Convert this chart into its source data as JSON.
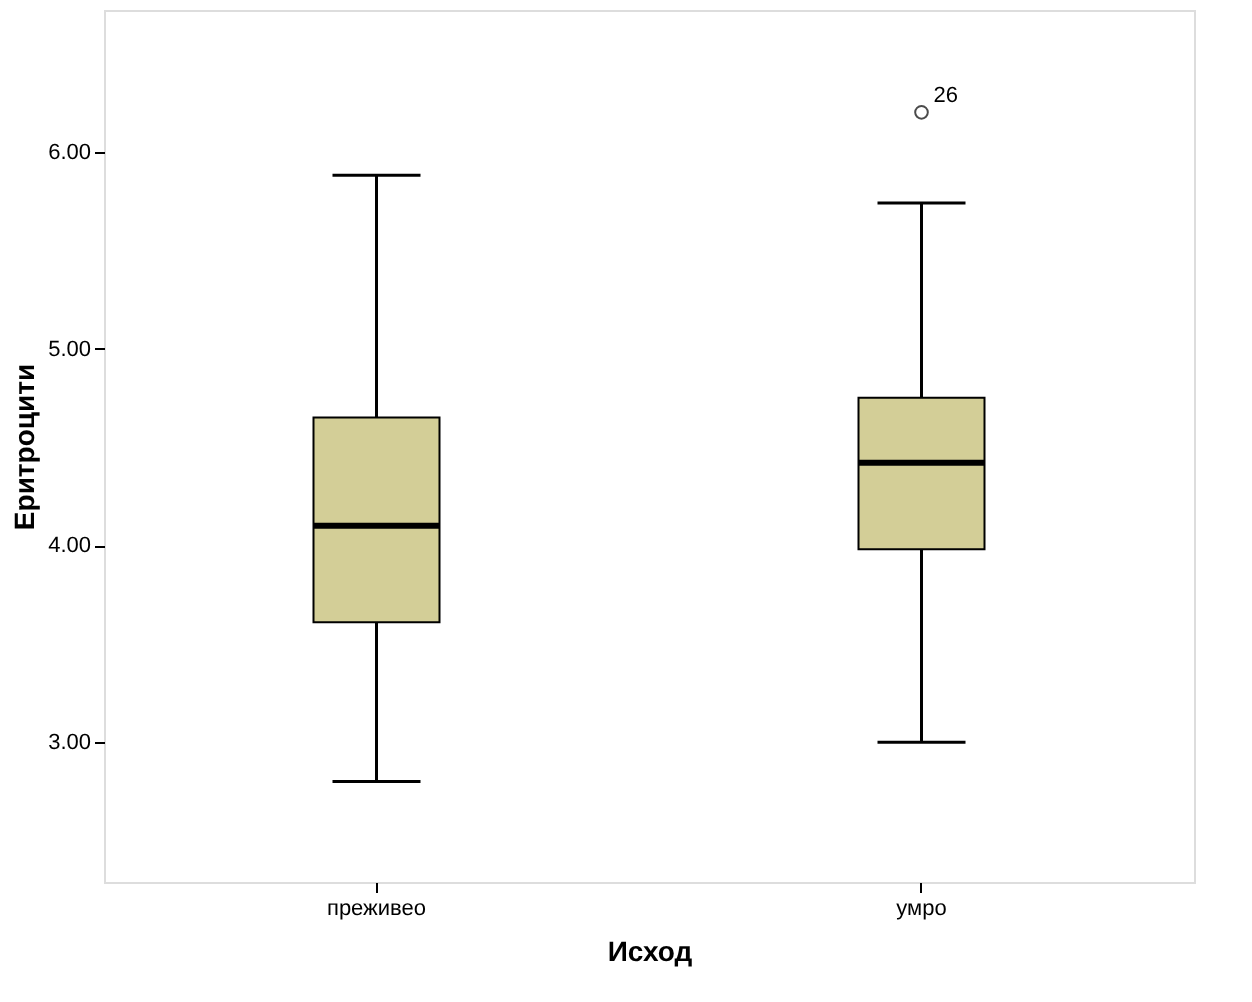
{
  "chart_data": {
    "type": "box",
    "xlabel": "Исход",
    "ylabel": "Еритроцити",
    "categories": [
      "преживео",
      "умро"
    ],
    "color": "#d3ce97",
    "ylim": [
      2.29,
      6.72
    ],
    "yticks": [
      {
        "value": 3,
        "label": "3.00"
      },
      {
        "value": 4,
        "label": "4.00"
      },
      {
        "value": 5,
        "label": "5.00"
      },
      {
        "value": 6,
        "label": "6.00"
      }
    ],
    "boxes": [
      {
        "low": 2.8,
        "q1": 3.61,
        "median": 4.1,
        "q3": 4.65,
        "high": 5.88
      },
      {
        "low": 3.0,
        "q1": 3.98,
        "median": 4.42,
        "q3": 4.75,
        "high": 5.74,
        "outliers": [
          6.2
        ]
      }
    ],
    "annotations": [
      "26"
    ],
    "grid": false
  }
}
